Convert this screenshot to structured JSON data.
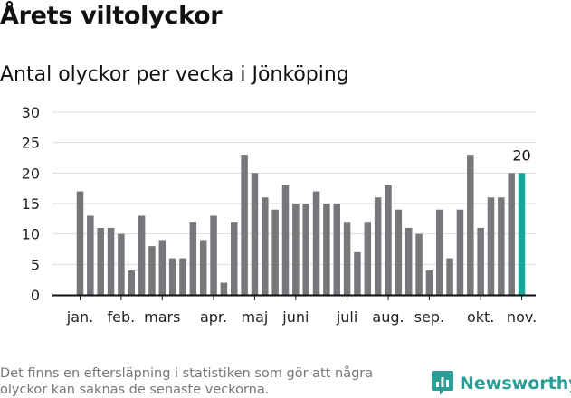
{
  "header": {
    "title": "Årets viltolyckor",
    "subtitle": "Antal olyckor per vecka i Jönköping"
  },
  "footer": {
    "note": "Det finns en eftersläpning i statistiken som gör att några olyckor kan saknas de senaste veckorna.",
    "brand": "Newsworthy"
  },
  "colors": {
    "bar": "#77777b",
    "highlight": "#17a799",
    "grid": "#dddddd",
    "axis": "#111111",
    "brand": "#2a9d96"
  },
  "chart_data": {
    "type": "bar",
    "title": "Antal olyckor per vecka i Jönköping",
    "ylim": [
      0,
      30
    ],
    "yticks": [
      0,
      5,
      10,
      15,
      20,
      25,
      30
    ],
    "grid": true,
    "values": [
      17,
      13,
      11,
      11,
      10,
      4,
      13,
      8,
      9,
      6,
      6,
      12,
      9,
      13,
      2,
      12,
      23,
      20,
      16,
      14,
      18,
      15,
      15,
      17,
      15,
      15,
      12,
      7,
      12,
      16,
      18,
      14,
      11,
      10,
      4,
      14,
      6,
      14,
      23,
      11,
      16,
      16,
      20,
      20
    ],
    "highlight_index": 43,
    "highlight_label": "20",
    "month_labels": [
      {
        "label": "jan.",
        "week_index": 0
      },
      {
        "label": "feb.",
        "week_index": 4
      },
      {
        "label": "mars",
        "week_index": 8
      },
      {
        "label": "apr.",
        "week_index": 13
      },
      {
        "label": "maj",
        "week_index": 17
      },
      {
        "label": "juni",
        "week_index": 21
      },
      {
        "label": "juli",
        "week_index": 26
      },
      {
        "label": "aug.",
        "week_index": 30
      },
      {
        "label": "sep.",
        "week_index": 34
      },
      {
        "label": "okt.",
        "week_index": 39
      },
      {
        "label": "nov.",
        "week_index": 43
      }
    ]
  }
}
